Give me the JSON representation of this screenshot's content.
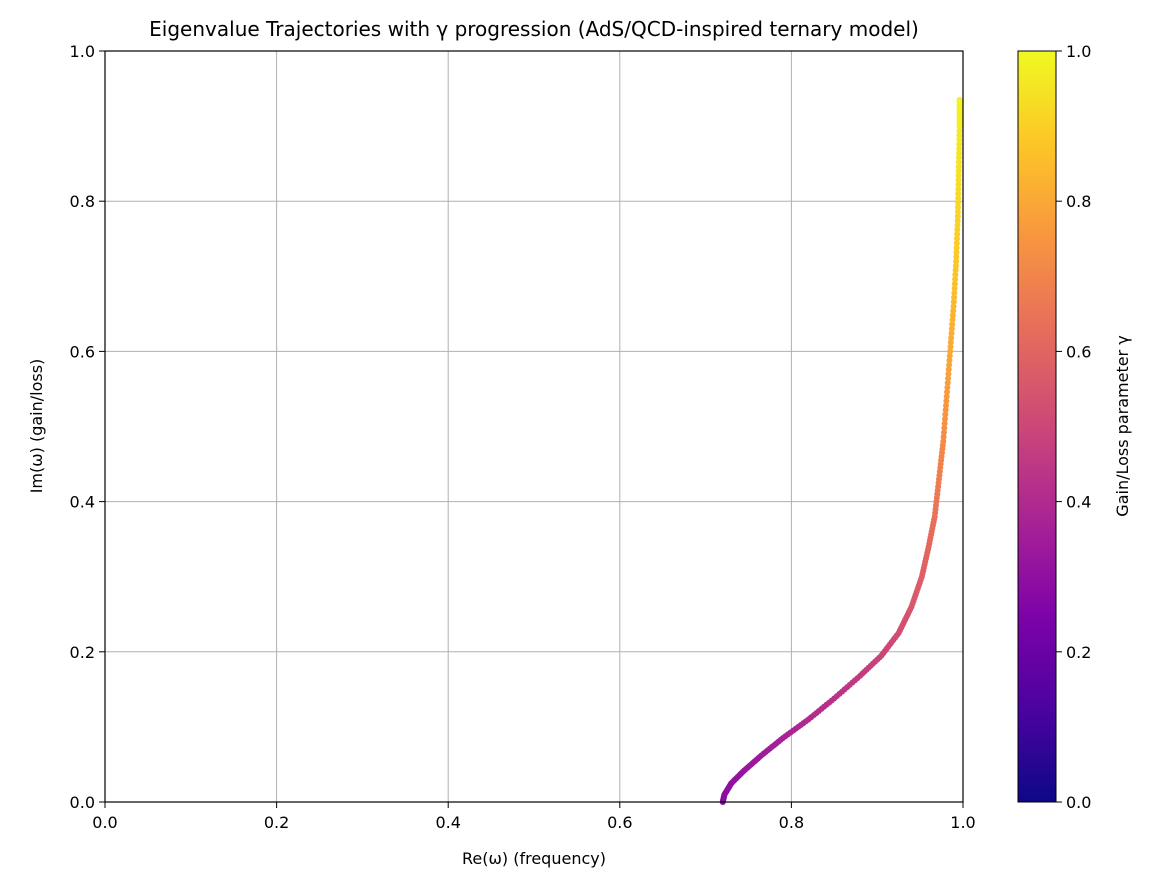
{
  "chart_data": {
    "type": "scatter",
    "title": "Eigenvalue Trajectories with γ progression (AdS/QCD-inspired ternary model)",
    "xlabel": "Re(ω)  (frequency)",
    "ylabel": "Im(ω)  (gain/loss)",
    "xlim": [
      0.0,
      1.0
    ],
    "ylim": [
      0.0,
      1.0
    ],
    "xticks": [
      "0.0",
      "0.2",
      "0.4",
      "0.6",
      "0.8",
      "1.0"
    ],
    "yticks": [
      "0.0",
      "0.2",
      "0.4",
      "0.6",
      "0.8",
      "1.0"
    ],
    "grid": true,
    "colormap": "plasma",
    "colorbar": {
      "label": "Gain/Loss parameter γ",
      "range": [
        0.0,
        1.0
      ],
      "ticks": [
        "0.0",
        "0.2",
        "0.4",
        "0.6",
        "0.8",
        "1.0"
      ]
    },
    "series": [
      {
        "points": [
          {
            "x": 0.72,
            "y": 0.0,
            "c": 0.28
          },
          {
            "x": 0.722,
            "y": 0.01,
            "c": 0.29
          },
          {
            "x": 0.73,
            "y": 0.025,
            "c": 0.3
          },
          {
            "x": 0.745,
            "y": 0.042,
            "c": 0.32
          },
          {
            "x": 0.765,
            "y": 0.062,
            "c": 0.34
          },
          {
            "x": 0.79,
            "y": 0.085,
            "c": 0.37
          },
          {
            "x": 0.82,
            "y": 0.11,
            "c": 0.4
          },
          {
            "x": 0.85,
            "y": 0.138,
            "c": 0.43
          },
          {
            "x": 0.88,
            "y": 0.168,
            "c": 0.46
          },
          {
            "x": 0.905,
            "y": 0.195,
            "c": 0.49
          },
          {
            "x": 0.925,
            "y": 0.225,
            "c": 0.52
          },
          {
            "x": 0.94,
            "y": 0.26,
            "c": 0.55
          },
          {
            "x": 0.952,
            "y": 0.3,
            "c": 0.58
          },
          {
            "x": 0.96,
            "y": 0.34,
            "c": 0.61
          },
          {
            "x": 0.967,
            "y": 0.38,
            "c": 0.64
          },
          {
            "x": 0.972,
            "y": 0.43,
            "c": 0.68
          },
          {
            "x": 0.977,
            "y": 0.48,
            "c": 0.72
          },
          {
            "x": 0.981,
            "y": 0.54,
            "c": 0.76
          },
          {
            "x": 0.985,
            "y": 0.6,
            "c": 0.8
          },
          {
            "x": 0.989,
            "y": 0.66,
            "c": 0.84
          },
          {
            "x": 0.992,
            "y": 0.72,
            "c": 0.88
          },
          {
            "x": 0.994,
            "y": 0.78,
            "c": 0.91
          },
          {
            "x": 0.995,
            "y": 0.84,
            "c": 0.94
          },
          {
            "x": 0.996,
            "y": 0.9,
            "c": 0.97
          },
          {
            "x": 0.996,
            "y": 0.935,
            "c": 0.99
          }
        ]
      }
    ]
  }
}
